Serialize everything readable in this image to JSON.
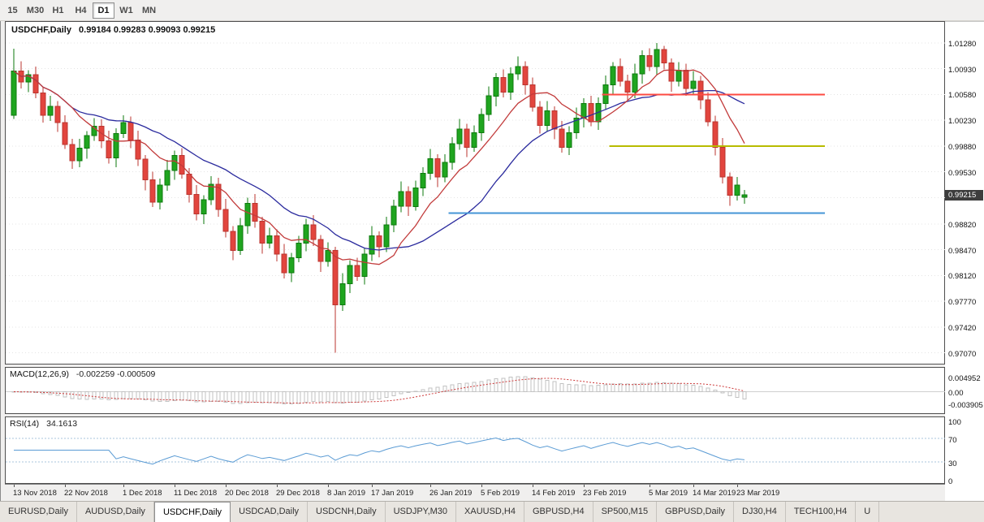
{
  "toolbar": {
    "timeframes": [
      "15",
      "M30",
      "H1",
      "H4",
      "D1",
      "W1",
      "MN"
    ],
    "active_timeframe": "D1"
  },
  "chart": {
    "symbol_label": "USDCHF,Daily",
    "ohlc_label": "0.99184 0.99283 0.99093 0.99215"
  },
  "price_axis": {
    "labels": [
      "1.01280",
      "1.00930",
      "1.00580",
      "1.00230",
      "0.99880",
      "0.99530",
      "0.99180",
      "0.98820",
      "0.98470",
      "0.98120",
      "0.97770",
      "0.97420",
      "0.97070"
    ],
    "current_price": "0.99215"
  },
  "macd_panel": {
    "label": "MACD(12,26,9)",
    "values": "-0.002259 -0.000509",
    "axis_labels": [
      "0.004952",
      "0.00",
      "-0.003905"
    ]
  },
  "rsi_panel": {
    "label": "RSI(14)",
    "value": "34.1613",
    "axis_labels": [
      "100",
      "70",
      "30",
      "0"
    ]
  },
  "date_axis": {
    "labels": [
      "13 Nov 2018",
      "22 Nov 2018",
      "1 Dec 2018",
      "11 Dec 2018",
      "20 Dec 2018",
      "29 Dec 2018",
      "8 Jan 2019",
      "17 Jan 2019",
      "26 Jan 2019",
      "5 Feb 2019",
      "14 Feb 2019",
      "23 Feb 2019",
      "5 Mar 2019",
      "14 Mar 2019",
      "23 Mar 2019"
    ],
    "label_indices": [
      0,
      7,
      15,
      22,
      29,
      36,
      43,
      49,
      57,
      64,
      71,
      78,
      87,
      93,
      99
    ]
  },
  "tabs": {
    "items": [
      "EURUSD,Daily",
      "AUDUSD,Daily",
      "USDCHF,Daily",
      "USDCAD,Daily",
      "USDCNH,Daily",
      "USDJPY,M30",
      "XAUUSD,H4",
      "GBPUSD,H4",
      "SP500,M15",
      "GBPUSD,Daily",
      "DJ30,H4",
      "TECH100,H4",
      "U"
    ],
    "active_index": 2
  },
  "colors": {
    "up_fill": "#1fa51f",
    "up_stroke": "#0c7a0c",
    "down_fill": "#e2453e",
    "down_stroke": "#bb352f",
    "ma_fast": "#c23b3b",
    "ma_slow": "#2b2b9e",
    "hline_red": "#fd4a42",
    "hline_olive": "#b8bb00",
    "hline_blue": "#4495d6",
    "macd_hist": "#c2c2c2",
    "macd_signal": "#cc3838",
    "macd_zero": "#cfcfcf",
    "rsi_line": "#5a9bd4",
    "rsi_levels": "#aac4dd",
    "grid": "#e4e4e4",
    "badge_bg": "#3d3d3d"
  },
  "chart_data": {
    "type": "candlestick",
    "symbol": "USDCHF",
    "timeframe": "Daily",
    "current_ohlc": {
      "open": 0.99184,
      "high": 0.99283,
      "low": 0.99093,
      "close": 0.99215
    },
    "ylim": [
      0.97,
      1.015
    ],
    "candles": [
      [
        1.003,
        1.012,
        1.0025,
        1.009
      ],
      [
        1.009,
        1.0103,
        1.0066,
        1.0075
      ],
      [
        1.0075,
        1.0091,
        1.0061,
        1.0085
      ],
      [
        1.0085,
        1.0096,
        1.0053,
        1.006
      ],
      [
        1.006,
        1.0069,
        1.002,
        1.003
      ],
      [
        1.003,
        1.0056,
        1.0022,
        1.0042
      ],
      [
        1.0042,
        1.0049,
        1.0007,
        1.002
      ],
      [
        1.002,
        1.003,
        0.9984,
        0.999
      ],
      [
        0.999,
        0.9998,
        0.9957,
        0.9968
      ],
      [
        0.9968,
        0.9998,
        0.9959,
        0.9985
      ],
      [
        0.9985,
        1.0008,
        0.9971,
        1.0002
      ],
      [
        1.0002,
        1.0026,
        0.9995,
        1.0015
      ],
      [
        1.0015,
        1.0024,
        0.9985,
        0.9995
      ],
      [
        0.9995,
        1.0009,
        0.9964,
        0.9972
      ],
      [
        0.9972,
        1.0012,
        0.9959,
        1.0005
      ],
      [
        1.0005,
        1.003,
        0.9999,
        1.002
      ],
      [
        1.002,
        1.0028,
        0.9985,
        0.9996
      ],
      [
        0.9996,
        1.0009,
        0.9961,
        0.997
      ],
      [
        0.997,
        0.9976,
        0.9928,
        0.9942
      ],
      [
        0.9942,
        0.9953,
        0.9905,
        0.9912
      ],
      [
        0.9912,
        0.9944,
        0.9902,
        0.9935
      ],
      [
        0.9935,
        0.9969,
        0.9927,
        0.9955
      ],
      [
        0.9955,
        0.9982,
        0.9942,
        0.9975
      ],
      [
        0.9975,
        0.9985,
        0.9944,
        0.995
      ],
      [
        0.995,
        0.9958,
        0.9911,
        0.9922
      ],
      [
        0.9922,
        0.9935,
        0.9887,
        0.9896
      ],
      [
        0.9896,
        0.9921,
        0.9882,
        0.9915
      ],
      [
        0.9915,
        0.9947,
        0.9908,
        0.9936
      ],
      [
        0.9936,
        0.9945,
        0.9892,
        0.9902
      ],
      [
        0.9902,
        0.9916,
        0.9864,
        0.9872
      ],
      [
        0.9872,
        0.9879,
        0.9833,
        0.9846
      ],
      [
        0.9846,
        0.989,
        0.984,
        0.988
      ],
      [
        0.988,
        0.9918,
        0.9869,
        0.991
      ],
      [
        0.991,
        0.9923,
        0.9877,
        0.9886
      ],
      [
        0.9886,
        0.9892,
        0.9842,
        0.9856
      ],
      [
        0.9856,
        0.9877,
        0.9849,
        0.9866
      ],
      [
        0.9866,
        0.9875,
        0.9831,
        0.9841
      ],
      [
        0.9841,
        0.9855,
        0.9808,
        0.9816
      ],
      [
        0.9816,
        0.9843,
        0.9803,
        0.9836
      ],
      [
        0.9836,
        0.9866,
        0.983,
        0.9856
      ],
      [
        0.9856,
        0.9889,
        0.9845,
        0.9881
      ],
      [
        0.9881,
        0.9894,
        0.9852,
        0.9861
      ],
      [
        0.9861,
        0.9867,
        0.9817,
        0.9831
      ],
      [
        0.9831,
        0.9857,
        0.9824,
        0.9846
      ],
      [
        0.9846,
        0.9851,
        0.9707,
        0.9772
      ],
      [
        0.9772,
        0.9815,
        0.9764,
        0.9801
      ],
      [
        0.9801,
        0.9833,
        0.9788,
        0.9826
      ],
      [
        0.9826,
        0.9836,
        0.9805,
        0.9811
      ],
      [
        0.9811,
        0.9849,
        0.98,
        0.9841
      ],
      [
        0.9841,
        0.9879,
        0.9832,
        0.9866
      ],
      [
        0.9866,
        0.9872,
        0.9837,
        0.9851
      ],
      [
        0.9851,
        0.9892,
        0.9844,
        0.9881
      ],
      [
        0.9881,
        0.9915,
        0.9871,
        0.9906
      ],
      [
        0.9906,
        0.994,
        0.9898,
        0.9926
      ],
      [
        0.9926,
        0.9933,
        0.9893,
        0.9906
      ],
      [
        0.9906,
        0.9941,
        0.99,
        0.9931
      ],
      [
        0.9931,
        0.9959,
        0.992,
        0.9951
      ],
      [
        0.9951,
        0.9984,
        0.9942,
        0.9971
      ],
      [
        0.9971,
        0.9977,
        0.9932,
        0.9946
      ],
      [
        0.9946,
        0.9977,
        0.9939,
        0.9966
      ],
      [
        0.9966,
        1.0,
        0.9956,
        0.9991
      ],
      [
        0.9991,
        1.0025,
        0.9983,
        1.0011
      ],
      [
        1.0011,
        1.0018,
        0.9973,
        0.9986
      ],
      [
        0.9986,
        1.0016,
        0.998,
        1.0006
      ],
      [
        1.0006,
        1.0039,
        0.9995,
        1.0031
      ],
      [
        1.0031,
        1.0069,
        1.0022,
        1.0056
      ],
      [
        1.0056,
        1.0087,
        1.0042,
        1.0081
      ],
      [
        1.0081,
        1.0092,
        1.0054,
        1.0061
      ],
      [
        1.0061,
        1.0095,
        1.0051,
        1.0086
      ],
      [
        1.0086,
        1.011,
        1.0078,
        1.0096
      ],
      [
        1.0096,
        1.0103,
        1.0058,
        1.0071
      ],
      [
        1.0071,
        1.0081,
        1.0035,
        1.0041
      ],
      [
        1.0041,
        1.0049,
        1.0005,
        1.0016
      ],
      [
        1.0016,
        1.0049,
        1.0007,
        1.0036
      ],
      [
        1.0036,
        1.0042,
        0.9997,
        1.0011
      ],
      [
        1.0011,
        1.0022,
        0.9979,
        0.9986
      ],
      [
        0.9986,
        1.0015,
        0.9976,
        1.0006
      ],
      [
        1.0006,
        1.004,
        0.9998,
        1.0026
      ],
      [
        1.0026,
        1.0053,
        1.0013,
        1.0046
      ],
      [
        1.0046,
        1.0056,
        1.0015,
        1.0021
      ],
      [
        1.0021,
        1.0054,
        1.001,
        1.0046
      ],
      [
        1.0046,
        1.0084,
        1.0037,
        1.0071
      ],
      [
        1.0071,
        1.0102,
        1.0057,
        1.0096
      ],
      [
        1.0096,
        1.0107,
        1.0069,
        1.0076
      ],
      [
        1.0076,
        1.0085,
        1.0051,
        1.0061
      ],
      [
        1.0061,
        1.01,
        1.0053,
        1.0086
      ],
      [
        1.0086,
        1.0118,
        1.0073,
        1.0111
      ],
      [
        1.0111,
        1.0121,
        1.009,
        1.0096
      ],
      [
        1.0096,
        1.0128,
        1.0085,
        1.0119
      ],
      [
        1.0119,
        1.0124,
        1.0092,
        1.0101
      ],
      [
        1.0101,
        1.0107,
        1.0062,
        1.0076
      ],
      [
        1.0076,
        1.0102,
        1.0069,
        1.0091
      ],
      [
        1.0091,
        1.01,
        1.0056,
        1.0066
      ],
      [
        1.0066,
        1.009,
        1.0058,
        1.0076
      ],
      [
        1.0076,
        1.0083,
        1.0038,
        1.0051
      ],
      [
        1.0051,
        1.0061,
        1.0015,
        1.0021
      ],
      [
        1.0021,
        1.0029,
        0.9975,
        0.9986
      ],
      [
        0.9986,
        0.9999,
        0.9937,
        0.9946
      ],
      [
        0.9946,
        0.9952,
        0.9907,
        0.9921
      ],
      [
        0.9921,
        0.9946,
        0.9914,
        0.9935
      ],
      [
        0.99184,
        0.99283,
        0.99093,
        0.99215
      ]
    ],
    "overlays": {
      "ma_fast_period": 9,
      "ma_slow_period": 21,
      "hlines": [
        {
          "price": 1.0058,
          "from": 80.5,
          "to": 111,
          "color_key": "hline_red"
        },
        {
          "price": 0.9988,
          "from": 81.5,
          "to": 111,
          "color_key": "hline_olive"
        },
        {
          "price": 0.9897,
          "from": 59.5,
          "to": 111,
          "color_key": "hline_blue"
        }
      ]
    },
    "macd": {
      "fast": 12,
      "slow": 26,
      "signal": 9,
      "ylim": [
        -0.0062,
        0.007
      ],
      "axis_values": [
        0.004952,
        0,
        -0.003905
      ]
    },
    "rsi": {
      "period": 14,
      "levels": [
        70,
        30
      ],
      "ylim": [
        0,
        100
      ],
      "axis_values": [
        100,
        70,
        30,
        0
      ]
    }
  }
}
